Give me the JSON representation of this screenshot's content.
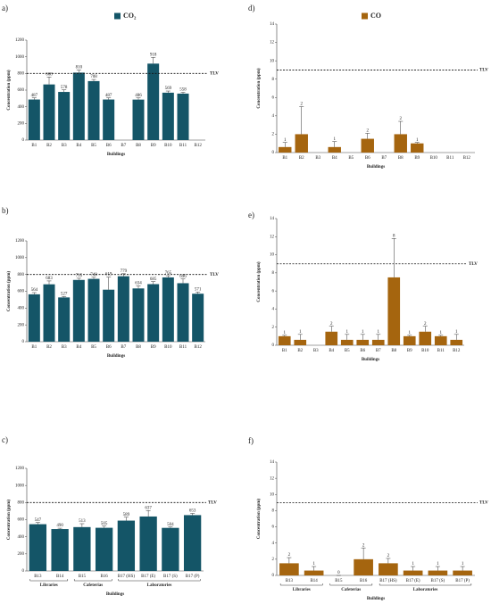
{
  "chart_data": [
    {
      "type": "bar",
      "panel": "a)",
      "ylabel": "Concentration (ppm)",
      "xlabel": "Buildings",
      "categories": [
        "B1",
        "B2",
        "B3",
        "B4",
        "B5",
        "B6",
        "B7",
        "B8",
        "B9",
        "B10",
        "B11",
        "B12"
      ],
      "series": [
        {
          "name": "CO₂",
          "color": "#145567",
          "values": [
            487,
            668,
            578,
            810,
            708,
            487,
            null,
            486,
            918,
            569,
            558,
            null
          ],
          "errors": [
            20,
            90,
            25,
            30,
            20,
            20,
            null,
            20,
            75,
            20,
            15,
            null
          ]
        }
      ],
      "ylim": [
        0,
        1200
      ],
      "yticks": [
        0,
        200,
        400,
        600,
        800,
        1000,
        1200
      ],
      "reference_line": {
        "value": 800,
        "label": "TLV"
      }
    },
    {
      "type": "bar",
      "panel": "d)",
      "ylabel": "Concentration (ppm)",
      "xlabel": "Buildings",
      "categories": [
        "B1",
        "B2",
        "B3",
        "B4",
        "B5",
        "B6",
        "B7",
        "B8",
        "B9",
        "B10",
        "B11",
        "B12"
      ],
      "series": [
        {
          "name": "CO",
          "color": "#a5650f",
          "values": [
            0.6,
            2,
            null,
            0.6,
            null,
            1.5,
            null,
            2,
            1,
            null,
            null,
            null
          ],
          "value_labels": [
            "1",
            "2",
            null,
            "1",
            null,
            "2",
            null,
            "2",
            "1",
            null,
            null,
            null
          ],
          "errors": [
            0.5,
            3,
            null,
            0.6,
            null,
            0.6,
            null,
            1.4,
            0.1,
            null,
            null,
            null
          ]
        }
      ],
      "ylim": [
        0,
        14
      ],
      "yticks": [
        0,
        2,
        4,
        6,
        8,
        10,
        12,
        14
      ],
      "reference_line": {
        "value": 9,
        "label": "TLV"
      }
    },
    {
      "type": "bar",
      "panel": "b)",
      "ylabel": "Concentration (ppm)",
      "xlabel": "Buildings",
      "categories": [
        "B1",
        "B2",
        "B3",
        "B4",
        "B5",
        "B6",
        "B7",
        "B8",
        "B9",
        "B10",
        "B11",
        "B12"
      ],
      "color": "#145567",
      "values": [
        564,
        683,
        527,
        735,
        748,
        619,
        779,
        634,
        685,
        765,
        696,
        571
      ],
      "errors": [
        20,
        40,
        10,
        20,
        20,
        150,
        30,
        30,
        30,
        20,
        50,
        20
      ],
      "ylim": [
        0,
        1200
      ],
      "yticks": [
        0,
        200,
        400,
        600,
        800,
        1000,
        1200
      ],
      "reference_line": {
        "value": 800,
        "label": "TLV"
      }
    },
    {
      "type": "bar",
      "panel": "e)",
      "ylabel": "Concentration (ppm)",
      "xlabel": "Buildings",
      "categories": [
        "B1",
        "B2",
        "B3",
        "B4",
        "B5",
        "B6",
        "B7",
        "B8",
        "B9",
        "B10",
        "B11",
        "B12"
      ],
      "color": "#a5650f",
      "values": [
        1,
        0.6,
        null,
        1.5,
        0.6,
        0.6,
        0.6,
        7.5,
        1,
        1.5,
        1,
        0.6
      ],
      "value_labels": [
        "1",
        "1",
        null,
        "2",
        "1",
        "1",
        "1",
        "8",
        "1",
        "2",
        "1",
        "1"
      ],
      "errors": [
        0.1,
        0.6,
        null,
        0.6,
        0.6,
        0.6,
        0.6,
        4.3,
        0.1,
        0.6,
        0.1,
        0.6
      ],
      "ylim": [
        0,
        14
      ],
      "yticks": [
        0,
        2,
        4,
        6,
        8,
        10,
        12,
        14
      ],
      "reference_line": {
        "value": 9,
        "label": "TLV"
      }
    },
    {
      "type": "bar",
      "panel": "c)",
      "ylabel": "Concentration (ppm)",
      "xlabel": "Buildings",
      "categories": [
        "B13",
        "B14",
        "B15",
        "B16",
        "B17 (HS)",
        "B17 (E)",
        "B17 (S)",
        "B17 (P)"
      ],
      "groups": [
        {
          "label": "Libraries",
          "categories": [
            "B13",
            "B14"
          ]
        },
        {
          "label": "Cafeterias",
          "categories": [
            "B15",
            "B16"
          ]
        },
        {
          "label": "Laboratories",
          "categories": [
            "B17 (HS)",
            "B17 (E)",
            "B17 (S)",
            "B17 (P)"
          ]
        }
      ],
      "color": "#145567",
      "values": [
        547,
        490,
        513,
        505,
        589,
        637,
        504,
        653
      ],
      "errors": [
        20,
        10,
        40,
        20,
        40,
        70,
        10,
        20
      ],
      "ylim": [
        0,
        1200
      ],
      "yticks": [
        0,
        200,
        400,
        600,
        800,
        1000,
        1200
      ],
      "reference_line": {
        "value": 800,
        "label": "TLV"
      }
    },
    {
      "type": "bar",
      "panel": "f)",
      "ylabel": "Concentration (ppm)",
      "xlabel": "Buildings",
      "categories": [
        "B13",
        "B14",
        "B15",
        "B16",
        "B17 (HS)",
        "B17 (E)",
        "B17 (S)",
        "B17 (P)"
      ],
      "groups": [
        {
          "label": "Libraries",
          "categories": [
            "B13",
            "B14"
          ]
        },
        {
          "label": "Cafeterias",
          "categories": [
            "B15",
            "B16"
          ]
        },
        {
          "label": "Laboratories",
          "categories": [
            "B17 (HS)",
            "B17 (E)",
            "B17 (S)",
            "B17 (P)"
          ]
        }
      ],
      "color": "#a5650f",
      "values": [
        1.5,
        0.6,
        0,
        2,
        1.5,
        0.6,
        0.6,
        0.6
      ],
      "value_labels": [
        "2",
        "1",
        "0",
        "2",
        "2",
        "1",
        "1",
        "1"
      ],
      "errors": [
        0.7,
        0.5,
        0,
        1.4,
        0.6,
        0.5,
        0.5,
        0.5
      ],
      "ylim": [
        0,
        14
      ],
      "yticks": [
        0,
        2,
        4,
        6,
        8,
        10,
        12,
        14
      ],
      "reference_line": {
        "value": 9,
        "label": "TLV"
      }
    }
  ]
}
